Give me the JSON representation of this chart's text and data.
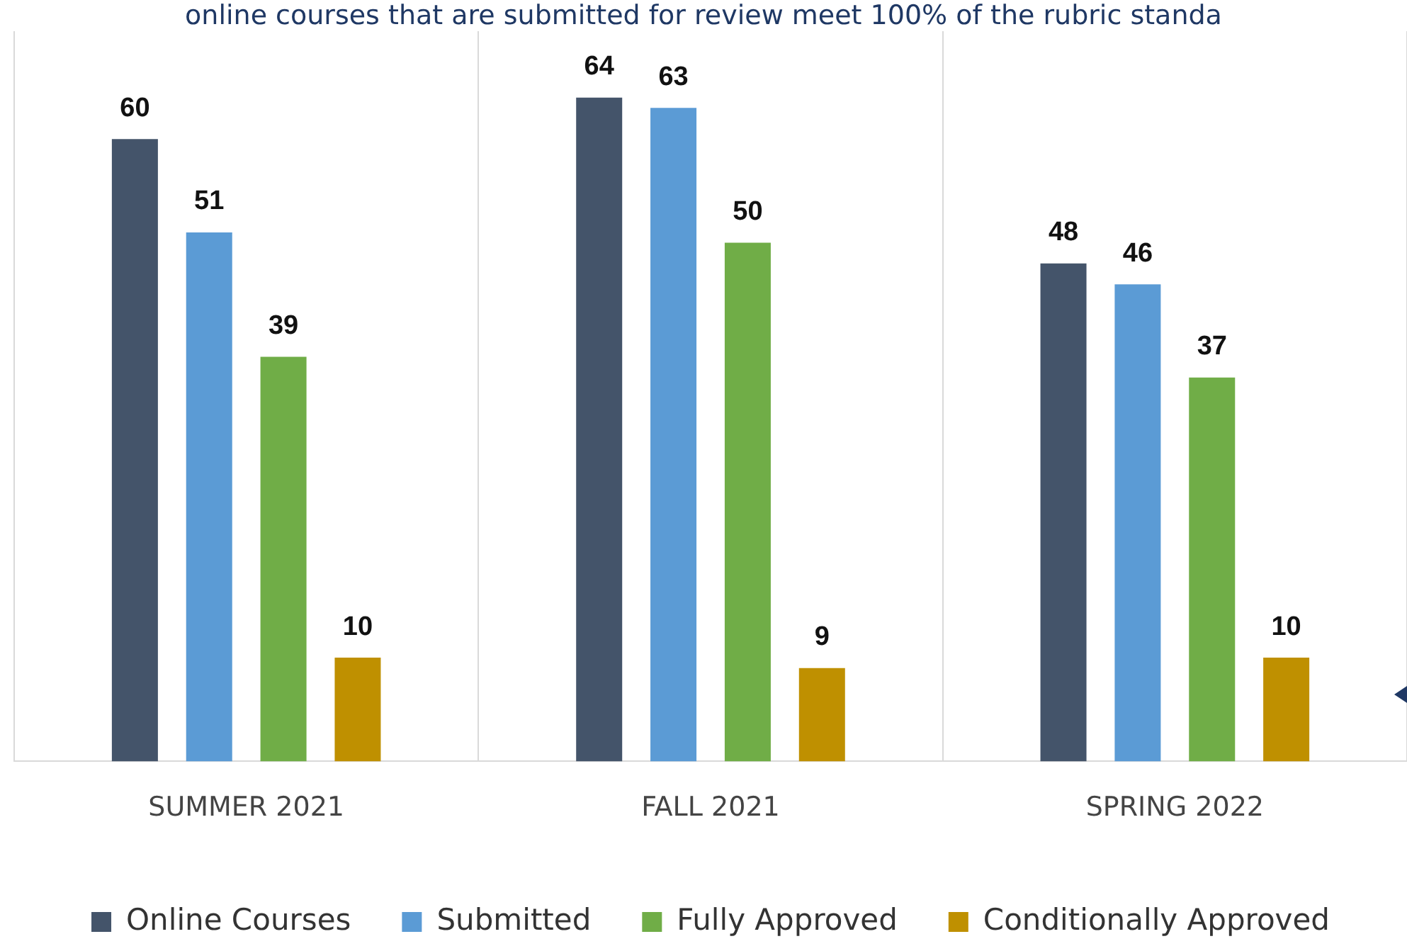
{
  "chart_data": {
    "type": "bar",
    "title": "online courses that are submitted for review meet 100% of the rubric standa",
    "categories": [
      "SUMMER 2021",
      "FALL 2021",
      "SPRING 2022"
    ],
    "series": [
      {
        "name": "Online Courses",
        "color": "#44546a",
        "values": [
          60,
          64,
          48
        ]
      },
      {
        "name": "Submitted",
        "color": "#5b9bd5",
        "values": [
          51,
          63,
          46
        ]
      },
      {
        "name": "Fully Approved",
        "color": "#70ad47",
        "values": [
          39,
          50,
          37
        ]
      },
      {
        "name": "Conditionally Approved",
        "color": "#bf9000",
        "values": [
          10,
          9,
          10
        ]
      }
    ],
    "data_labels": true,
    "grid": "x",
    "legend": "bottom",
    "tick_labels": "x"
  }
}
